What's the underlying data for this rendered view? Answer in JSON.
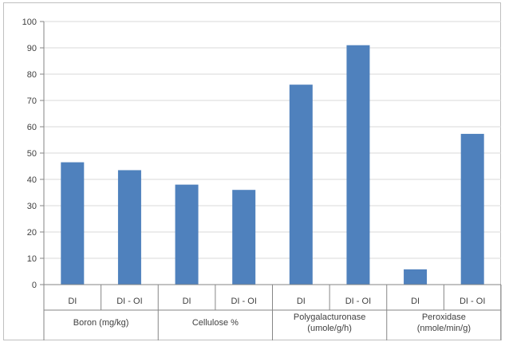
{
  "chart_data": {
    "type": "bar",
    "title": "",
    "xlabel": "",
    "ylabel": "",
    "ylim": [
      0,
      100
    ],
    "yticks": [
      0,
      10,
      20,
      30,
      40,
      50,
      60,
      70,
      80,
      90,
      100
    ],
    "grid": true,
    "legend": "none",
    "bar_color": "#4F81BD",
    "gridline_color": "#d9d9d9",
    "groups": [
      {
        "label": [
          "Boron (mg/kg)"
        ],
        "categories": [
          "DI",
          "DI - OI"
        ],
        "values": [
          46.5,
          43.5
        ]
      },
      {
        "label": [
          "Cellulose %"
        ],
        "categories": [
          "DI",
          "DI - OI"
        ],
        "values": [
          38,
          36
        ]
      },
      {
        "label": [
          "Polygalacturonase",
          "(umole/g/h)"
        ],
        "categories": [
          "DI",
          "DI - OI"
        ],
        "values": [
          76,
          91
        ]
      },
      {
        "label": [
          "Peroxidase",
          "(nmole/min/g)"
        ],
        "categories": [
          "DI",
          "DI - OI"
        ],
        "values": [
          5.8,
          57.3
        ]
      }
    ]
  }
}
